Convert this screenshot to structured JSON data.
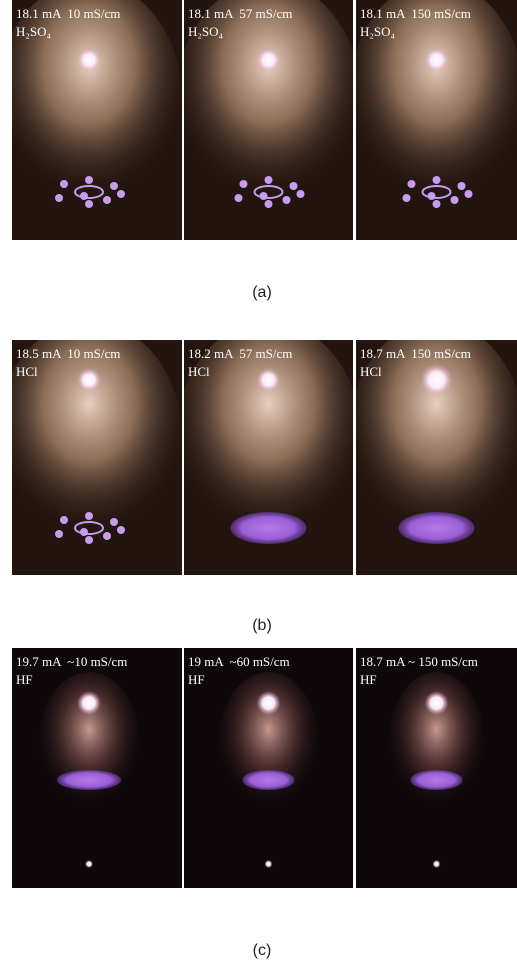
{
  "rows": [
    {
      "caption": "(a)",
      "panels": [
        {
          "label": "18.1 mA  10 mS/cm",
          "electrolyte": "H₂SO₄"
        },
        {
          "label": "18.1 mA  57 mS/cm",
          "electrolyte": "H₂SO₄"
        },
        {
          "label": "18.1 mA  150 mS/cm",
          "electrolyte": "H₂SO₄"
        }
      ]
    },
    {
      "caption": "(b)",
      "panels": [
        {
          "label": "18.5 mA  10 mS/cm",
          "electrolyte": "HCl"
        },
        {
          "label": "18.2 mA  57 mS/cm",
          "electrolyte": "HCl"
        },
        {
          "label": "18.7 mA  150 mS/cm",
          "electrolyte": "HCl"
        }
      ]
    },
    {
      "caption": "(c)",
      "panels": [
        {
          "label": "19.7 mA  ~10 mS/cm",
          "electrolyte": "HF"
        },
        {
          "label": "19 mA  ~60 mS/cm",
          "electrolyte": "HF"
        },
        {
          "label": "18.7 mA ~ 150 mS/cm",
          "electrolyte": "HF"
        }
      ]
    }
  ]
}
